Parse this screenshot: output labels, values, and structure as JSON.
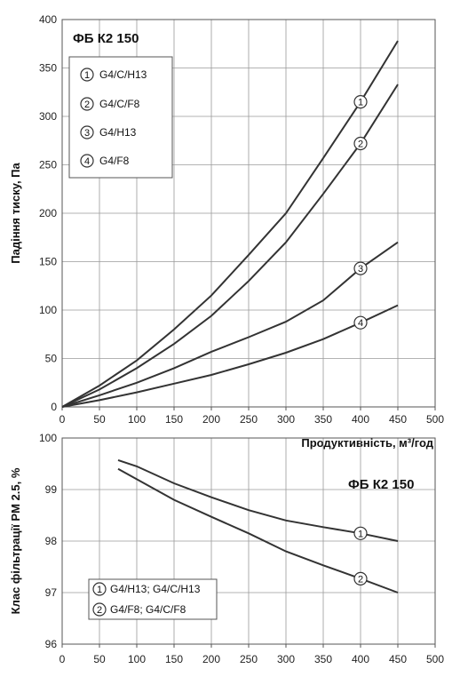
{
  "chart_data": [
    {
      "type": "line",
      "title": "ФБ К2 150",
      "xlabel": "Продуктивність, м³/год",
      "ylabel": "Падіння тиску, Па",
      "xlim": [
        0,
        500
      ],
      "ylim": [
        0,
        400
      ],
      "xticks": [
        "0",
        "50",
        "100",
        "150",
        "200",
        "250",
        "300",
        "350",
        "400",
        "450",
        "500"
      ],
      "yticks": [
        "0",
        "50",
        "100",
        "150",
        "200",
        "250",
        "300",
        "350",
        "400"
      ],
      "grid": true,
      "legend": "top-left",
      "series": [
        {
          "marker": "1",
          "name": "G4/C/H13",
          "marker_x": 400,
          "x": [
            0,
            50,
            100,
            150,
            200,
            250,
            300,
            350,
            400,
            450
          ],
          "y": [
            0,
            22,
            48,
            80,
            115,
            157,
            200,
            257,
            315,
            378
          ]
        },
        {
          "marker": "2",
          "name": "G4/C/F8",
          "marker_x": 400,
          "x": [
            0,
            50,
            100,
            150,
            200,
            250,
            300,
            350,
            400,
            450
          ],
          "y": [
            0,
            18,
            40,
            65,
            94,
            130,
            170,
            220,
            272,
            333
          ]
        },
        {
          "marker": "3",
          "name": "G4/H13",
          "marker_x": 400,
          "x": [
            0,
            50,
            100,
            150,
            200,
            250,
            300,
            350,
            400,
            450
          ],
          "y": [
            0,
            12,
            25,
            40,
            57,
            72,
            88,
            110,
            143,
            170
          ]
        },
        {
          "marker": "4",
          "name": "G4/F8",
          "marker_x": 400,
          "x": [
            0,
            50,
            100,
            150,
            200,
            250,
            300,
            350,
            400,
            450
          ],
          "y": [
            0,
            7,
            15,
            24,
            33,
            44,
            56,
            70,
            87,
            105
          ]
        }
      ]
    },
    {
      "type": "line",
      "title": "ФБ К2 150",
      "xlabel": "",
      "ylabel": "Клас фільтрації PM 2.5, %",
      "xlim": [
        0,
        500
      ],
      "ylim": [
        96,
        100
      ],
      "xticks": [
        "0",
        "50",
        "100",
        "150",
        "200",
        "250",
        "300",
        "350",
        "400",
        "450",
        "500"
      ],
      "yticks": [
        "96",
        "97",
        "98",
        "99",
        "100"
      ],
      "grid": true,
      "legend": "bottom-left",
      "series": [
        {
          "marker": "1",
          "name": "G4/H13; G4/C/H13",
          "marker_x": 400,
          "x": [
            75,
            100,
            150,
            200,
            250,
            300,
            350,
            400,
            450
          ],
          "y": [
            99.57,
            99.45,
            99.12,
            98.85,
            98.6,
            98.4,
            98.27,
            98.15,
            98.0
          ]
        },
        {
          "marker": "2",
          "name": "G4/F8; G4/C/F8",
          "marker_x": 400,
          "x": [
            75,
            100,
            150,
            200,
            250,
            300,
            350,
            400,
            450
          ],
          "y": [
            99.4,
            99.2,
            98.8,
            98.47,
            98.15,
            97.8,
            97.53,
            97.27,
            97.0
          ]
        }
      ]
    }
  ]
}
